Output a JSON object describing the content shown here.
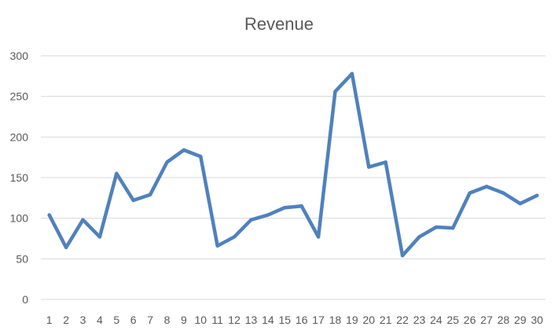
{
  "chart_data": {
    "type": "line",
    "title": "Revenue",
    "xlabel": "",
    "ylabel": "",
    "categories": [
      "1",
      "2",
      "3",
      "4",
      "5",
      "6",
      "7",
      "8",
      "9",
      "10",
      "11",
      "12",
      "13",
      "14",
      "15",
      "16",
      "17",
      "18",
      "19",
      "20",
      "21",
      "22",
      "23",
      "24",
      "25",
      "26",
      "27",
      "28",
      "29",
      "30"
    ],
    "series": [
      {
        "values": [
          104,
          64,
          98,
          77,
          155,
          122,
          129,
          169,
          184,
          176,
          66,
          77,
          98,
          104,
          113,
          115,
          77,
          256,
          278,
          163,
          169,
          54,
          77,
          89,
          88,
          131,
          139,
          131,
          118,
          128
        ],
        "color": "#4f81bd"
      }
    ],
    "ylim": [
      0,
      300
    ],
    "yticks": [
      0,
      50,
      100,
      150,
      200,
      250,
      300
    ],
    "grid": true,
    "legend": "none"
  }
}
